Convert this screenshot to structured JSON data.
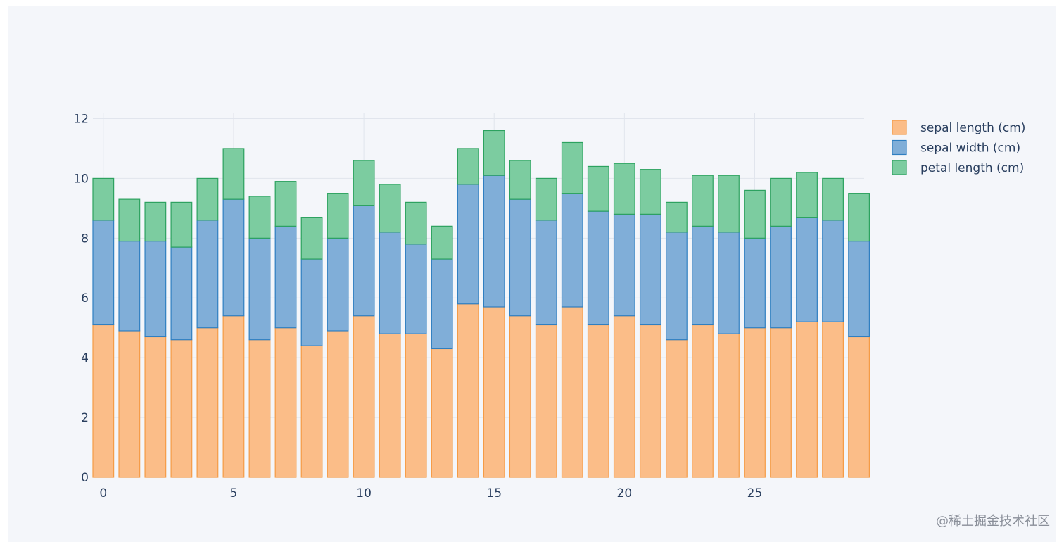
{
  "colors": {
    "paper": "#f4f6fa",
    "plot": "#f4f6fa",
    "grid": "#e1e5ed",
    "axis_text": "#2a3f5f"
  },
  "watermark": "@稀土掘金技术社区",
  "chart_data": {
    "type": "bar",
    "barmode": "stack",
    "title": "",
    "xlabel": "",
    "ylabel": "",
    "x": [
      0,
      1,
      2,
      3,
      4,
      5,
      6,
      7,
      8,
      9,
      10,
      11,
      12,
      13,
      14,
      15,
      16,
      17,
      18,
      19,
      20,
      21,
      22,
      23,
      24,
      25,
      26,
      27,
      28,
      29
    ],
    "xticks": [
      0,
      5,
      10,
      15,
      20,
      25
    ],
    "yticks": [
      0,
      2,
      4,
      6,
      8,
      10,
      12
    ],
    "xlim": [
      -0.4,
      29.2
    ],
    "ylim": [
      0,
      12.2
    ],
    "grid": true,
    "legend_position": "top-right",
    "series": [
      {
        "name": "sepal length (cm)",
        "fill": "#fbbd88",
        "stroke": "#f59b45",
        "values": [
          5.1,
          4.9,
          4.7,
          4.6,
          5.0,
          5.4,
          4.6,
          5.0,
          4.4,
          4.9,
          5.4,
          4.8,
          4.8,
          4.3,
          5.8,
          5.7,
          5.4,
          5.1,
          5.7,
          5.1,
          5.4,
          5.1,
          4.6,
          5.1,
          4.8,
          5.0,
          5.0,
          5.2,
          5.2,
          4.7
        ]
      },
      {
        "name": "sepal width (cm)",
        "fill": "#80aed8",
        "stroke": "#2f7fc1",
        "values": [
          3.5,
          3.0,
          3.2,
          3.1,
          3.6,
          3.9,
          3.4,
          3.4,
          2.9,
          3.1,
          3.7,
          3.4,
          3.0,
          3.0,
          4.0,
          4.4,
          3.9,
          3.5,
          3.8,
          3.8,
          3.4,
          3.7,
          3.6,
          3.3,
          3.4,
          3.0,
          3.4,
          3.5,
          3.4,
          3.2
        ]
      },
      {
        "name": "petal length (cm)",
        "fill": "#7ccca0",
        "stroke": "#2ca25f",
        "values": [
          1.4,
          1.4,
          1.3,
          1.5,
          1.4,
          1.7,
          1.4,
          1.5,
          1.4,
          1.5,
          1.5,
          1.6,
          1.4,
          1.1,
          1.2,
          1.5,
          1.3,
          1.4,
          1.7,
          1.5,
          1.7,
          1.5,
          1.0,
          1.7,
          1.9,
          1.6,
          1.6,
          1.5,
          1.4,
          1.6
        ]
      }
    ]
  }
}
